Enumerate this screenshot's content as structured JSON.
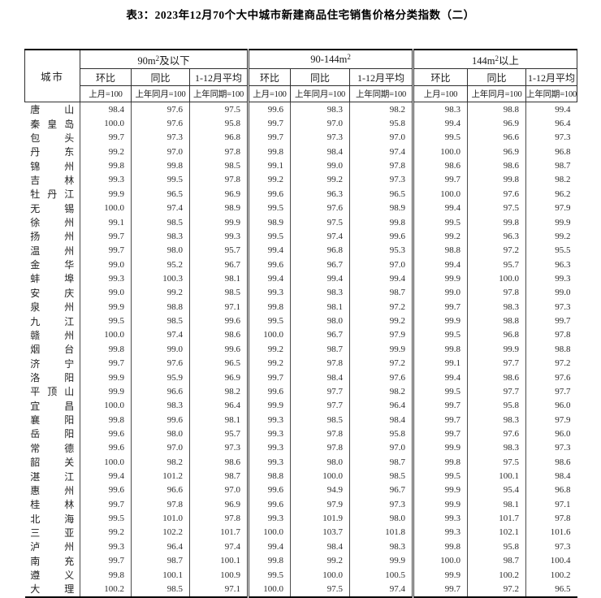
{
  "title": "表3：2023年12月70个大中城市新建商品住宅销售价格分类指数（二）",
  "table": {
    "city_header": "城市",
    "groups": [
      {
        "pre": "90m",
        "sup": "2",
        "post": "及以下"
      },
      {
        "pre": "90-144m",
        "sup": "2",
        "post": ""
      },
      {
        "pre": "144m",
        "sup": "2",
        "post": "以上"
      }
    ],
    "subcols": [
      {
        "label": "环比",
        "base": "上月=100"
      },
      {
        "label": "同比",
        "base": "上年同月=100"
      },
      {
        "label": "1-12月平均",
        "base": "上年同期=100"
      }
    ],
    "rows": [
      {
        "city": "唐山",
        "values": [
          "98.4",
          "97.6",
          "97.5",
          "99.6",
          "98.3",
          "98.2",
          "98.3",
          "98.8",
          "99.4"
        ]
      },
      {
        "city": "秦皇岛",
        "values": [
          "100.0",
          "97.6",
          "95.8",
          "99.7",
          "97.0",
          "95.8",
          "99.4",
          "96.9",
          "96.4"
        ]
      },
      {
        "city": "包头",
        "values": [
          "99.7",
          "97.3",
          "96.8",
          "99.7",
          "97.3",
          "97.0",
          "99.5",
          "96.6",
          "97.3"
        ]
      },
      {
        "city": "丹东",
        "values": [
          "99.2",
          "97.0",
          "97.8",
          "99.8",
          "98.4",
          "97.4",
          "100.0",
          "96.9",
          "96.8"
        ]
      },
      {
        "city": "锦州",
        "values": [
          "99.8",
          "99.8",
          "98.5",
          "99.1",
          "99.0",
          "97.8",
          "98.6",
          "98.6",
          "98.7"
        ]
      },
      {
        "city": "吉林",
        "values": [
          "99.3",
          "99.5",
          "97.8",
          "99.2",
          "99.2",
          "97.3",
          "99.7",
          "99.8",
          "98.2"
        ]
      },
      {
        "city": "牡丹江",
        "values": [
          "99.9",
          "96.5",
          "96.9",
          "99.6",
          "96.3",
          "96.5",
          "100.0",
          "97.6",
          "96.2"
        ]
      },
      {
        "city": "无锡",
        "values": [
          "100.0",
          "97.4",
          "98.9",
          "99.5",
          "97.6",
          "98.9",
          "99.4",
          "97.5",
          "97.9"
        ]
      },
      {
        "city": "徐州",
        "values": [
          "99.1",
          "98.5",
          "99.9",
          "98.9",
          "97.5",
          "99.8",
          "99.5",
          "99.8",
          "99.9"
        ]
      },
      {
        "city": "扬州",
        "values": [
          "99.7",
          "98.3",
          "99.3",
          "99.5",
          "97.4",
          "99.6",
          "99.2",
          "96.3",
          "99.2"
        ]
      },
      {
        "city": "温州",
        "values": [
          "99.7",
          "98.0",
          "95.7",
          "99.4",
          "96.8",
          "95.3",
          "98.8",
          "97.2",
          "95.5"
        ]
      },
      {
        "city": "金华",
        "values": [
          "99.0",
          "95.2",
          "96.7",
          "99.6",
          "96.7",
          "97.0",
          "99.4",
          "95.7",
          "96.3"
        ]
      },
      {
        "city": "蚌埠",
        "values": [
          "99.3",
          "100.3",
          "98.1",
          "99.4",
          "99.4",
          "99.4",
          "99.9",
          "100.0",
          "99.3"
        ]
      },
      {
        "city": "安庆",
        "values": [
          "99.0",
          "99.2",
          "98.5",
          "99.3",
          "98.3",
          "98.7",
          "99.0",
          "97.8",
          "99.0"
        ]
      },
      {
        "city": "泉州",
        "values": [
          "99.9",
          "98.8",
          "97.1",
          "99.8",
          "98.1",
          "97.2",
          "99.7",
          "98.3",
          "97.3"
        ]
      },
      {
        "city": "九江",
        "values": [
          "99.5",
          "98.5",
          "99.6",
          "99.5",
          "98.0",
          "99.2",
          "99.9",
          "98.8",
          "99.7"
        ]
      },
      {
        "city": "赣州",
        "values": [
          "100.0",
          "97.4",
          "98.6",
          "100.0",
          "96.7",
          "97.9",
          "99.5",
          "96.8",
          "97.8"
        ]
      },
      {
        "city": "烟台",
        "values": [
          "99.8",
          "99.0",
          "99.6",
          "99.2",
          "98.7",
          "99.9",
          "99.8",
          "99.9",
          "98.8"
        ]
      },
      {
        "city": "济宁",
        "values": [
          "99.7",
          "97.6",
          "96.5",
          "99.2",
          "97.8",
          "97.2",
          "99.1",
          "97.7",
          "97.2"
        ]
      },
      {
        "city": "洛阳",
        "values": [
          "99.9",
          "95.9",
          "96.9",
          "99.7",
          "98.4",
          "97.6",
          "99.4",
          "98.6",
          "97.6"
        ]
      },
      {
        "city": "平顶山",
        "values": [
          "99.9",
          "96.6",
          "98.2",
          "99.6",
          "97.7",
          "98.2",
          "99.5",
          "97.7",
          "97.7"
        ]
      },
      {
        "city": "宜昌",
        "values": [
          "100.0",
          "98.3",
          "96.4",
          "99.9",
          "97.7",
          "96.4",
          "99.7",
          "95.8",
          "96.0"
        ]
      },
      {
        "city": "襄阳",
        "values": [
          "99.8",
          "99.6",
          "98.1",
          "99.3",
          "98.5",
          "98.4",
          "99.7",
          "98.3",
          "97.9"
        ]
      },
      {
        "city": "岳阳",
        "values": [
          "99.6",
          "98.0",
          "95.7",
          "99.3",
          "97.8",
          "95.8",
          "99.7",
          "97.6",
          "96.0"
        ]
      },
      {
        "city": "常德",
        "values": [
          "99.6",
          "97.0",
          "97.3",
          "99.3",
          "97.8",
          "97.0",
          "99.9",
          "98.3",
          "97.3"
        ]
      },
      {
        "city": "韶关",
        "values": [
          "100.0",
          "98.2",
          "98.6",
          "99.3",
          "98.0",
          "98.7",
          "99.8",
          "97.5",
          "98.6"
        ]
      },
      {
        "city": "湛江",
        "values": [
          "99.4",
          "101.2",
          "98.7",
          "98.8",
          "100.0",
          "98.5",
          "99.5",
          "100.1",
          "98.4"
        ]
      },
      {
        "city": "惠州",
        "values": [
          "99.6",
          "96.6",
          "97.0",
          "99.6",
          "94.9",
          "96.7",
          "99.9",
          "95.4",
          "96.8"
        ]
      },
      {
        "city": "桂林",
        "values": [
          "99.7",
          "97.8",
          "96.9",
          "99.6",
          "97.9",
          "97.3",
          "99.9",
          "98.1",
          "97.1"
        ]
      },
      {
        "city": "北海",
        "values": [
          "99.5",
          "101.0",
          "97.8",
          "99.3",
          "101.9",
          "98.0",
          "99.3",
          "101.7",
          "97.8"
        ]
      },
      {
        "city": "三亚",
        "values": [
          "99.2",
          "102.2",
          "101.7",
          "100.0",
          "103.7",
          "101.8",
          "99.3",
          "102.1",
          "101.6"
        ]
      },
      {
        "city": "泸州",
        "values": [
          "99.3",
          "96.4",
          "97.4",
          "99.4",
          "98.4",
          "98.3",
          "99.8",
          "95.8",
          "97.3"
        ]
      },
      {
        "city": "南充",
        "values": [
          "99.7",
          "98.7",
          "100.1",
          "99.8",
          "99.2",
          "99.9",
          "100.0",
          "98.7",
          "100.4"
        ]
      },
      {
        "city": "遵义",
        "values": [
          "99.8",
          "100.1",
          "100.9",
          "99.5",
          "100.0",
          "100.5",
          "99.9",
          "100.2",
          "100.2"
        ]
      },
      {
        "city": "大理",
        "values": [
          "100.2",
          "98.5",
          "97.1",
          "100.0",
          "97.5",
          "97.4",
          "99.7",
          "97.2",
          "96.5"
        ]
      }
    ]
  }
}
